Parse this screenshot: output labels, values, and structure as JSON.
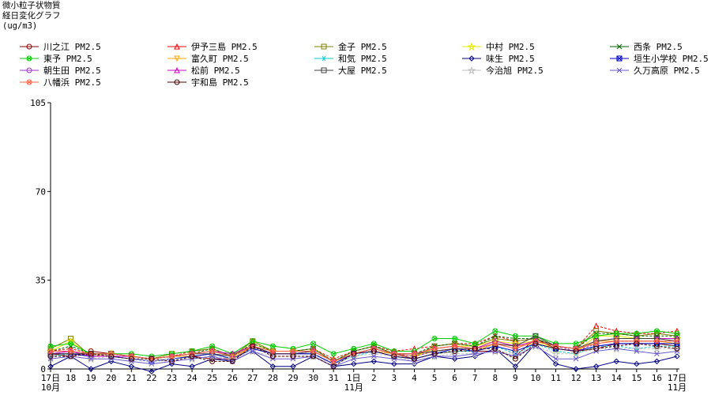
{
  "chart_data": {
    "type": "line",
    "title": "微小粒子状物質",
    "subtitle": "経日変化グラフ",
    "unit": "(ug/m3)",
    "ylim": [
      0,
      105
    ],
    "y_ticks": [
      "0",
      "35",
      "70",
      "105"
    ],
    "grid": false,
    "legend_position": "top",
    "x": [
      "17日",
      "18",
      "19",
      "20",
      "21",
      "22",
      "23",
      "24",
      "25",
      "26",
      "27",
      "28",
      "29",
      "30",
      "31",
      "1日",
      "2",
      "3",
      "4",
      "5",
      "6",
      "7",
      "8",
      "9",
      "10",
      "11",
      "12",
      "13",
      "14",
      "15",
      "16",
      "17日"
    ],
    "x_sublabels": {
      "0": "10月",
      "15": "11月",
      "31": "11月"
    },
    "series": [
      {
        "name": "川之江 PM2.5",
        "color": "#8b0000",
        "marker": "circle",
        "values": [
          6,
          5,
          7,
          6,
          5,
          4,
          5,
          5,
          4,
          4,
          9,
          6,
          6,
          6,
          2,
          6,
          8,
          6,
          4,
          6,
          7,
          7,
          7,
          5,
          12,
          8,
          7,
          8,
          10,
          10,
          10,
          9
        ]
      },
      {
        "name": "伊予三島 PM2.5",
        "color": "#ff0000",
        "marker": "triangle",
        "values": [
          7,
          8,
          6,
          6,
          5,
          4,
          5,
          7,
          8,
          5,
          11,
          7,
          7,
          8,
          4,
          7,
          9,
          7,
          8,
          9,
          10,
          10,
          13,
          11,
          12,
          9,
          8,
          17,
          15,
          14,
          14,
          15
        ]
      },
      {
        "name": "金子 PM2.5",
        "color": "#808000",
        "marker": "square",
        "values": [
          8,
          12,
          5,
          6,
          5,
          4,
          6,
          7,
          8,
          5,
          11,
          7,
          7,
          8,
          3,
          7,
          9,
          6,
          5,
          9,
          10,
          9,
          12,
          11,
          12,
          9,
          8,
          15,
          14,
          13,
          14,
          13
        ]
      },
      {
        "name": "中村 PM2.5",
        "color": "#e8e800",
        "marker": "star",
        "values": [
          7,
          11,
          5,
          6,
          5,
          4,
          5,
          6,
          7,
          5,
          10,
          7,
          7,
          7,
          3,
          6,
          8,
          6,
          5,
          8,
          9,
          9,
          11,
          10,
          11,
          8,
          7,
          13,
          13,
          12,
          12,
          12
        ]
      },
      {
        "name": "西条 PM2.5",
        "color": "#006400",
        "marker": "x",
        "values": [
          7,
          9,
          6,
          6,
          5,
          4,
          5,
          6,
          8,
          5,
          10,
          7,
          7,
          8,
          3,
          7,
          9,
          6,
          6,
          9,
          10,
          9,
          13,
          12,
          12,
          9,
          8,
          14,
          14,
          13,
          13,
          13
        ]
      },
      {
        "name": "東予 PM2.5",
        "color": "#00cc00",
        "marker": "circle-x",
        "values": [
          9,
          10,
          6,
          6,
          6,
          5,
          6,
          7,
          9,
          6,
          11,
          9,
          8,
          10,
          6,
          8,
          10,
          7,
          7,
          12,
          12,
          10,
          15,
          13,
          13,
          10,
          10,
          13,
          14,
          14,
          15,
          14
        ]
      },
      {
        "name": "富久町 PM2.5",
        "color": "#ffa500",
        "marker": "triangle-down",
        "values": [
          6,
          6,
          5,
          5,
          5,
          4,
          5,
          5,
          6,
          4,
          9,
          6,
          6,
          7,
          3,
          6,
          7,
          6,
          5,
          7,
          8,
          7,
          10,
          9,
          10,
          8,
          7,
          11,
          11,
          11,
          11,
          10
        ]
      },
      {
        "name": "和気 PM2.5",
        "color": "#00cccc",
        "marker": "asterisk",
        "values": [
          5,
          6,
          5,
          5,
          4,
          3,
          4,
          5,
          6,
          4,
          8,
          6,
          6,
          6,
          2,
          5,
          7,
          5,
          4,
          6,
          7,
          7,
          9,
          6,
          10,
          7,
          6,
          9,
          9,
          8,
          9,
          9
        ]
      },
      {
        "name": "味生 PM2.5",
        "color": "#000080",
        "marker": "diamond",
        "values": [
          1,
          5,
          0,
          3,
          1,
          -1,
          2,
          1,
          4,
          3,
          7,
          1,
          1,
          5,
          1,
          2,
          3,
          2,
          2,
          5,
          4,
          5,
          8,
          1,
          10,
          2,
          0,
          1,
          3,
          2,
          3,
          5
        ]
      },
      {
        "name": "垣生小学校 PM2.5",
        "color": "#0000cc",
        "marker": "box-x",
        "values": [
          6,
          6,
          5,
          5,
          4,
          3,
          4,
          5,
          6,
          4,
          8,
          6,
          6,
          6,
          2,
          6,
          7,
          5,
          4,
          6,
          8,
          7,
          9,
          7,
          10,
          8,
          7,
          9,
          10,
          10,
          10,
          10
        ]
      },
      {
        "name": "朝生田 PM2.5",
        "color": "#9932cc",
        "marker": "circle",
        "values": [
          6,
          7,
          5,
          6,
          5,
          4,
          5,
          6,
          7,
          5,
          9,
          6,
          6,
          7,
          3,
          6,
          8,
          6,
          5,
          7,
          8,
          8,
          10,
          8,
          11,
          9,
          7,
          10,
          11,
          11,
          11,
          11
        ]
      },
      {
        "name": "松前 PM2.5",
        "color": "#cc00cc",
        "marker": "triangle",
        "values": [
          6,
          7,
          5,
          5,
          5,
          4,
          5,
          6,
          7,
          6,
          9,
          6,
          6,
          7,
          3,
          6,
          8,
          6,
          6,
          8,
          9,
          8,
          11,
          9,
          11,
          9,
          8,
          11,
          12,
          12,
          12,
          12
        ]
      },
      {
        "name": "大屋 PM2.5",
        "color": "#404040",
        "marker": "square",
        "values": [
          6,
          6,
          6,
          6,
          5,
          4,
          5,
          6,
          6,
          5,
          9,
          6,
          6,
          7,
          3,
          6,
          8,
          6,
          6,
          7,
          8,
          8,
          10,
          9,
          13,
          9,
          8,
          11,
          12,
          12,
          12,
          11
        ]
      },
      {
        "name": "今治旭 PM2.5",
        "color": "#c0c0c0",
        "marker": "star",
        "values": [
          5,
          5,
          4,
          5,
          4,
          3,
          4,
          4,
          5,
          4,
          7,
          5,
          5,
          5,
          2,
          5,
          6,
          5,
          3,
          5,
          6,
          6,
          7,
          6,
          9,
          6,
          6,
          8,
          8,
          8,
          8,
          8
        ]
      },
      {
        "name": "久万高原 PM2.5",
        "color": "#6a5acd",
        "marker": "x",
        "values": [
          4,
          5,
          4,
          4,
          3,
          2,
          3,
          4,
          5,
          3,
          7,
          4,
          4,
          5,
          1,
          4,
          5,
          4,
          3,
          5,
          5,
          6,
          7,
          5,
          9,
          4,
          4,
          7,
          8,
          7,
          6,
          7
        ]
      },
      {
        "name": "八幡浜 PM2.5",
        "color": "#ff6347",
        "marker": "circle-x",
        "values": [
          7,
          7,
          6,
          6,
          5,
          4,
          5,
          6,
          7,
          5,
          9,
          7,
          7,
          7,
          3,
          6,
          8,
          6,
          6,
          8,
          9,
          8,
          10,
          8,
          11,
          9,
          8,
          10,
          11,
          11,
          11,
          11
        ]
      },
      {
        "name": "宇和島 PM2.5",
        "color": "#4a0000",
        "marker": "circle",
        "values": [
          5,
          5,
          6,
          5,
          4,
          4,
          3,
          5,
          3,
          3,
          9,
          5,
          5,
          5,
          1,
          6,
          7,
          5,
          4,
          6,
          7,
          8,
          8,
          4,
          10,
          8,
          7,
          8,
          9,
          10,
          9,
          8
        ]
      }
    ]
  }
}
